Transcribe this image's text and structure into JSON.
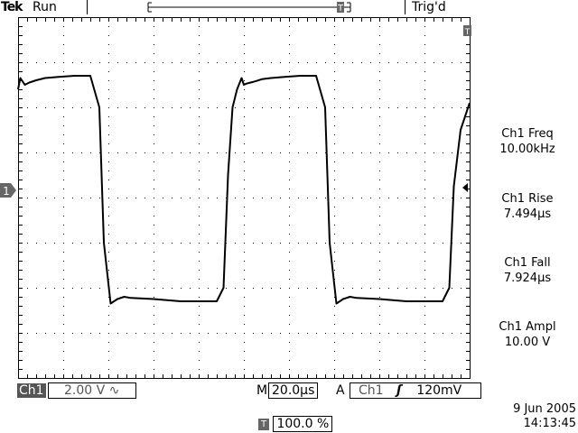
{
  "header": {
    "brand": "Tek",
    "acq_state": "Run",
    "trigger_status": "Trig'd"
  },
  "colors": {
    "trace": "#000000",
    "grid_dots": "#000000",
    "channel_badge_bg": "#555555",
    "background": "#ffffff"
  },
  "icons": {
    "channel_marker": "ch1-ground-marker-icon",
    "trigger_marker": "trigger-level-arrow-icon",
    "trigger_position": "trigger-position-icon",
    "coupling": "ac-coupling-icon",
    "slope": "rising-edge-icon"
  },
  "markers": {
    "channel_number": "1"
  },
  "measurements": [
    {
      "label": "Ch1 Freq",
      "value": "10.00kHz"
    },
    {
      "label": "Ch1 Rise",
      "value": "7.494µs"
    },
    {
      "label": "Ch1 Fall",
      "value": "7.924µs"
    },
    {
      "label": "Ch1 Ampl",
      "value": "10.00 V"
    }
  ],
  "status": {
    "channel": "Ch1",
    "volts_per_div": "2.00 V",
    "coupling_symbol": "∿",
    "time_prefix": "M",
    "time_per_div": "20.0µs",
    "trigger_mode": "A",
    "trigger_source": "Ch1",
    "trigger_slope": "ʃ",
    "trigger_level": "120mV",
    "trigger_position_symbol": "T",
    "trigger_position": "100.0 %",
    "date": "9 Jun  2005",
    "time": "14:13:45"
  },
  "chart_data": {
    "type": "line",
    "title": "",
    "xlabel": "",
    "ylabel": "",
    "x_unit": "µs",
    "y_unit": "V",
    "xlim": [
      0,
      200
    ],
    "ylim": [
      -8,
      8
    ],
    "grid": true,
    "series": [
      {
        "x": [
          0,
          1,
          3,
          5,
          8,
          12,
          18,
          25,
          32,
          36,
          38,
          41,
          44,
          47,
          50,
          60,
          72,
          80,
          88,
          91,
          93,
          95,
          97,
          99,
          100,
          101,
          103,
          105,
          108,
          112,
          118,
          125,
          132,
          136,
          138,
          141,
          144,
          147,
          150,
          160,
          172,
          180,
          188,
          191,
          193,
          196,
          200
        ],
        "y": [
          4.8,
          5.3,
          5.0,
          5.1,
          5.2,
          5.3,
          5.35,
          5.4,
          5.4,
          4.0,
          -2.0,
          -4.7,
          -4.5,
          -4.4,
          -4.45,
          -4.5,
          -4.6,
          -4.6,
          -4.6,
          -4.0,
          1.0,
          4.0,
          4.8,
          5.3,
          5.0,
          5.05,
          5.1,
          5.15,
          5.25,
          5.3,
          5.35,
          5.4,
          5.4,
          4.0,
          -2.0,
          -4.7,
          -4.5,
          -4.4,
          -4.45,
          -4.5,
          -4.6,
          -4.6,
          -4.6,
          -4.0,
          0.5,
          3.0,
          4.2
        ]
      }
    ]
  }
}
